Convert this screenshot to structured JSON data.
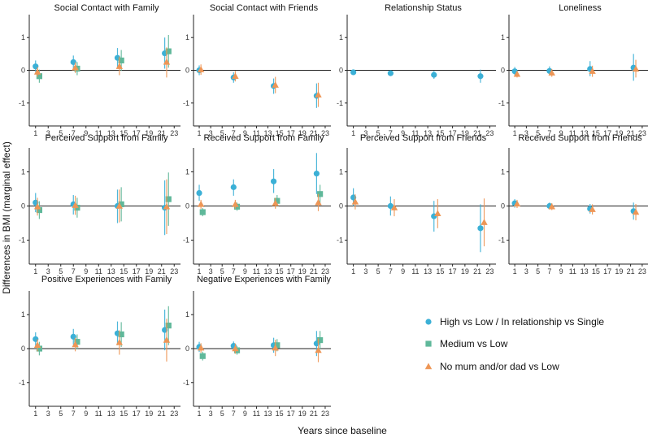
{
  "figure": {
    "ylabel": "Differences in BMI (marginal effect)",
    "xlabel": "Years since baseline",
    "yticks": [
      -1,
      0,
      1
    ],
    "xticks": [
      1,
      3,
      5,
      7,
      9,
      11,
      13,
      15,
      17,
      19,
      21,
      23
    ],
    "colors": {
      "high": "#3bb0d6",
      "medium": "#5fb89a",
      "nomum": "#ee9656"
    }
  },
  "legend": [
    {
      "key": "high",
      "shape": "circle",
      "label": "High vs Low / In relationship vs Single"
    },
    {
      "key": "medium",
      "shape": "square",
      "label": "Medium vs Low"
    },
    {
      "key": "nomum",
      "shape": "triangle",
      "label": "No mum and/or dad vs Low"
    }
  ],
  "chart_data": [
    {
      "type": "scatter",
      "title": "Social Contact with Family",
      "xlim": [
        0,
        24
      ],
      "ylim": [
        -1.7,
        1.7
      ],
      "series": [
        {
          "key": "high",
          "points": [
            {
              "x": 1,
              "y": 0.12,
              "lo": -0.05,
              "hi": 0.3
            },
            {
              "x": 7,
              "y": 0.25,
              "lo": 0.05,
              "hi": 0.45
            },
            {
              "x": 14,
              "y": 0.38,
              "lo": 0.1,
              "hi": 0.68
            },
            {
              "x": 21.5,
              "y": 0.52,
              "lo": 0.05,
              "hi": 1.0
            }
          ]
        },
        {
          "key": "medium",
          "points": [
            {
              "x": 1.6,
              "y": -0.18,
              "lo": -0.38,
              "hi": 0.02
            },
            {
              "x": 7.6,
              "y": 0.05,
              "lo": -0.15,
              "hi": 0.25
            },
            {
              "x": 14.6,
              "y": 0.3,
              "lo": -0.02,
              "hi": 0.62
            },
            {
              "x": 22.1,
              "y": 0.58,
              "lo": 0.08,
              "hi": 1.08
            }
          ]
        },
        {
          "key": "nomum",
          "points": [
            {
              "x": 1.3,
              "y": -0.05,
              "lo": -0.2,
              "hi": 0.1
            },
            {
              "x": 7.3,
              "y": 0.08,
              "lo": -0.08,
              "hi": 0.24
            },
            {
              "x": 14.3,
              "y": 0.12,
              "lo": -0.15,
              "hi": 0.42
            },
            {
              "x": 21.8,
              "y": 0.25,
              "lo": -0.22,
              "hi": 0.7
            }
          ]
        }
      ]
    },
    {
      "type": "scatter",
      "title": "Social Contact with Friends",
      "xlim": [
        0,
        24
      ],
      "ylim": [
        -1.7,
        1.7
      ],
      "series": [
        {
          "key": "high",
          "points": [
            {
              "x": 1,
              "y": 0.0,
              "lo": -0.15,
              "hi": 0.15
            },
            {
              "x": 7,
              "y": -0.22,
              "lo": -0.38,
              "hi": -0.06
            },
            {
              "x": 14,
              "y": -0.48,
              "lo": -0.72,
              "hi": -0.25
            },
            {
              "x": 21.5,
              "y": -0.78,
              "lo": -1.15,
              "hi": -0.4
            }
          ]
        },
        {
          "key": "nomum",
          "points": [
            {
              "x": 1.3,
              "y": 0.02,
              "lo": -0.14,
              "hi": 0.18
            },
            {
              "x": 7.3,
              "y": -0.18,
              "lo": -0.34,
              "hi": -0.02
            },
            {
              "x": 14.3,
              "y": -0.45,
              "lo": -0.7,
              "hi": -0.2
            },
            {
              "x": 21.8,
              "y": -0.75,
              "lo": -1.12,
              "hi": -0.38
            }
          ]
        }
      ]
    },
    {
      "type": "scatter",
      "title": "Relationship Status",
      "xlim": [
        0,
        24
      ],
      "ylim": [
        -1.7,
        1.7
      ],
      "series": [
        {
          "key": "high",
          "points": [
            {
              "x": 1,
              "y": -0.06,
              "lo": -0.12,
              "hi": 0.0
            },
            {
              "x": 7,
              "y": -0.09,
              "lo": -0.16,
              "hi": -0.02
            },
            {
              "x": 14,
              "y": -0.14,
              "lo": -0.26,
              "hi": -0.02
            },
            {
              "x": 21.5,
              "y": -0.18,
              "lo": -0.38,
              "hi": 0.02
            }
          ]
        }
      ]
    },
    {
      "type": "scatter",
      "title": "Loneliness",
      "xlim": [
        0,
        24
      ],
      "ylim": [
        -1.7,
        1.7
      ],
      "series": [
        {
          "key": "high",
          "points": [
            {
              "x": 1,
              "y": -0.03,
              "lo": -0.15,
              "hi": 0.1
            },
            {
              "x": 7,
              "y": -0.02,
              "lo": -0.15,
              "hi": 0.12
            },
            {
              "x": 14,
              "y": 0.04,
              "lo": -0.18,
              "hi": 0.28
            },
            {
              "x": 21.5,
              "y": 0.08,
              "lo": -0.32,
              "hi": 0.5
            }
          ]
        },
        {
          "key": "nomum",
          "points": [
            {
              "x": 1.4,
              "y": -0.12,
              "lo": -0.22,
              "hi": -0.02
            },
            {
              "x": 7.4,
              "y": -0.08,
              "lo": -0.2,
              "hi": 0.04
            },
            {
              "x": 14.4,
              "y": -0.03,
              "lo": -0.2,
              "hi": 0.14
            },
            {
              "x": 21.9,
              "y": 0.04,
              "lo": -0.22,
              "hi": 0.32
            }
          ]
        }
      ]
    },
    {
      "type": "scatter",
      "title": "Perceived Support from Family",
      "xlim": [
        0,
        24
      ],
      "ylim": [
        -1.7,
        1.7
      ],
      "series": [
        {
          "key": "high",
          "points": [
            {
              "x": 1,
              "y": 0.1,
              "lo": -0.18,
              "hi": 0.38
            },
            {
              "x": 7,
              "y": 0.05,
              "lo": -0.25,
              "hi": 0.32
            },
            {
              "x": 14,
              "y": 0.0,
              "lo": -0.5,
              "hi": 0.48
            },
            {
              "x": 21.5,
              "y": -0.05,
              "lo": -0.85,
              "hi": 0.75
            }
          ]
        },
        {
          "key": "medium",
          "points": [
            {
              "x": 1.6,
              "y": -0.12,
              "lo": -0.38,
              "hi": 0.14
            },
            {
              "x": 7.6,
              "y": -0.05,
              "lo": -0.34,
              "hi": 0.24
            },
            {
              "x": 14.6,
              "y": 0.05,
              "lo": -0.45,
              "hi": 0.55
            },
            {
              "x": 22.1,
              "y": 0.2,
              "lo": -0.58,
              "hi": 0.98
            }
          ]
        },
        {
          "key": "nomum",
          "points": [
            {
              "x": 1.3,
              "y": -0.02,
              "lo": -0.28,
              "hi": 0.24
            },
            {
              "x": 7.3,
              "y": 0.02,
              "lo": -0.26,
              "hi": 0.3
            },
            {
              "x": 14.3,
              "y": 0.0,
              "lo": -0.48,
              "hi": 0.48
            },
            {
              "x": 21.8,
              "y": -0.02,
              "lo": -0.82,
              "hi": 0.78
            }
          ]
        }
      ]
    },
    {
      "type": "scatter",
      "title": "Received Support from Family",
      "xlim": [
        0,
        24
      ],
      "ylim": [
        -1.7,
        1.7
      ],
      "series": [
        {
          "key": "high",
          "points": [
            {
              "x": 1,
              "y": 0.38,
              "lo": 0.15,
              "hi": 0.62
            },
            {
              "x": 7,
              "y": 0.55,
              "lo": 0.3,
              "hi": 0.78
            },
            {
              "x": 14,
              "y": 0.72,
              "lo": 0.38,
              "hi": 1.08
            },
            {
              "x": 21.5,
              "y": 0.95,
              "lo": 0.35,
              "hi": 1.55
            }
          ]
        },
        {
          "key": "medium",
          "points": [
            {
              "x": 1.6,
              "y": -0.18,
              "lo": -0.3,
              "hi": -0.06
            },
            {
              "x": 7.6,
              "y": -0.02,
              "lo": -0.14,
              "hi": 0.1
            },
            {
              "x": 14.6,
              "y": 0.15,
              "lo": -0.02,
              "hi": 0.32
            },
            {
              "x": 22.1,
              "y": 0.35,
              "lo": 0.08,
              "hi": 0.62
            }
          ]
        },
        {
          "key": "nomum",
          "points": [
            {
              "x": 1.3,
              "y": 0.05,
              "lo": -0.08,
              "hi": 0.18
            },
            {
              "x": 7.3,
              "y": 0.05,
              "lo": -0.08,
              "hi": 0.18
            },
            {
              "x": 14.3,
              "y": 0.08,
              "lo": -0.08,
              "hi": 0.24
            },
            {
              "x": 21.8,
              "y": 0.1,
              "lo": -0.15,
              "hi": 0.35
            }
          ]
        }
      ]
    },
    {
      "type": "scatter",
      "title": "Perceived Support from Friends",
      "xlim": [
        0,
        24
      ],
      "ylim": [
        -1.7,
        1.7
      ],
      "series": [
        {
          "key": "high",
          "points": [
            {
              "x": 1,
              "y": 0.25,
              "lo": 0.0,
              "hi": 0.52
            },
            {
              "x": 7,
              "y": 0.0,
              "lo": -0.28,
              "hi": 0.28
            },
            {
              "x": 14,
              "y": -0.3,
              "lo": -0.75,
              "hi": 0.15
            },
            {
              "x": 21.5,
              "y": -0.65,
              "lo": -1.35,
              "hi": 0.05
            }
          ]
        },
        {
          "key": "nomum",
          "points": [
            {
              "x": 1.3,
              "y": 0.12,
              "lo": -0.1,
              "hi": 0.34
            },
            {
              "x": 7.6,
              "y": -0.05,
              "lo": -0.3,
              "hi": 0.2
            },
            {
              "x": 14.6,
              "y": -0.22,
              "lo": -0.65,
              "hi": 0.2
            },
            {
              "x": 22.1,
              "y": -0.48,
              "lo": -1.18,
              "hi": 0.22
            }
          ]
        }
      ]
    },
    {
      "type": "scatter",
      "title": "Received Support from Friends",
      "xlim": [
        0,
        24
      ],
      "ylim": [
        -1.7,
        1.7
      ],
      "series": [
        {
          "key": "high",
          "points": [
            {
              "x": 1,
              "y": 0.08,
              "lo": -0.05,
              "hi": 0.2
            },
            {
              "x": 7,
              "y": 0.0,
              "lo": -0.1,
              "hi": 0.1
            },
            {
              "x": 14,
              "y": -0.08,
              "lo": -0.22,
              "hi": 0.06
            },
            {
              "x": 21.5,
              "y": -0.15,
              "lo": -0.4,
              "hi": 0.1
            }
          ]
        },
        {
          "key": "nomum",
          "points": [
            {
              "x": 1.4,
              "y": 0.06,
              "lo": -0.06,
              "hi": 0.18
            },
            {
              "x": 7.4,
              "y": -0.02,
              "lo": -0.12,
              "hi": 0.08
            },
            {
              "x": 14.4,
              "y": -0.1,
              "lo": -0.25,
              "hi": 0.05
            },
            {
              "x": 21.9,
              "y": -0.18,
              "lo": -0.42,
              "hi": 0.06
            }
          ]
        }
      ]
    },
    {
      "type": "scatter",
      "title": "Positive Experiences with Family",
      "xlim": [
        0,
        24
      ],
      "ylim": [
        -1.7,
        1.7
      ],
      "series": [
        {
          "key": "high",
          "points": [
            {
              "x": 1,
              "y": 0.28,
              "lo": 0.08,
              "hi": 0.48
            },
            {
              "x": 7,
              "y": 0.35,
              "lo": 0.12,
              "hi": 0.58
            },
            {
              "x": 14,
              "y": 0.45,
              "lo": 0.1,
              "hi": 0.8
            },
            {
              "x": 21.5,
              "y": 0.55,
              "lo": -0.05,
              "hi": 1.15
            }
          ]
        },
        {
          "key": "medium",
          "points": [
            {
              "x": 1.6,
              "y": 0.0,
              "lo": -0.2,
              "hi": 0.2
            },
            {
              "x": 7.6,
              "y": 0.2,
              "lo": -0.02,
              "hi": 0.42
            },
            {
              "x": 14.6,
              "y": 0.42,
              "lo": 0.05,
              "hi": 0.78
            },
            {
              "x": 22.1,
              "y": 0.68,
              "lo": 0.1,
              "hi": 1.25
            }
          ]
        },
        {
          "key": "nomum",
          "points": [
            {
              "x": 1.3,
              "y": 0.1,
              "lo": -0.08,
              "hi": 0.28
            },
            {
              "x": 7.3,
              "y": 0.12,
              "lo": -0.08,
              "hi": 0.32
            },
            {
              "x": 14.3,
              "y": 0.18,
              "lo": -0.18,
              "hi": 0.54
            },
            {
              "x": 21.8,
              "y": 0.25,
              "lo": -0.38,
              "hi": 0.88
            }
          ]
        }
      ]
    },
    {
      "type": "scatter",
      "title": "Negative Experiences with Family",
      "xlim": [
        0,
        24
      ],
      "ylim": [
        -1.7,
        1.7
      ],
      "series": [
        {
          "key": "high",
          "points": [
            {
              "x": 1,
              "y": 0.05,
              "lo": -0.1,
              "hi": 0.2
            },
            {
              "x": 7,
              "y": 0.08,
              "lo": -0.05,
              "hi": 0.21
            },
            {
              "x": 14,
              "y": 0.1,
              "lo": -0.12,
              "hi": 0.32
            },
            {
              "x": 21.5,
              "y": 0.15,
              "lo": -0.22,
              "hi": 0.52
            }
          ]
        },
        {
          "key": "medium",
          "points": [
            {
              "x": 1.6,
              "y": -0.22,
              "lo": -0.35,
              "hi": -0.09
            },
            {
              "x": 7.6,
              "y": -0.05,
              "lo": -0.18,
              "hi": 0.08
            },
            {
              "x": 14.6,
              "y": 0.1,
              "lo": -0.08,
              "hi": 0.28
            },
            {
              "x": 22.1,
              "y": 0.25,
              "lo": -0.02,
              "hi": 0.52
            }
          ]
        },
        {
          "key": "nomum",
          "points": [
            {
              "x": 1.3,
              "y": 0.02,
              "lo": -0.12,
              "hi": 0.16
            },
            {
              "x": 7.3,
              "y": 0.0,
              "lo": -0.15,
              "hi": 0.15
            },
            {
              "x": 14.3,
              "y": 0.02,
              "lo": -0.22,
              "hi": 0.26
            },
            {
              "x": 21.8,
              "y": -0.05,
              "lo": -0.4,
              "hi": 0.3
            }
          ]
        }
      ]
    }
  ]
}
